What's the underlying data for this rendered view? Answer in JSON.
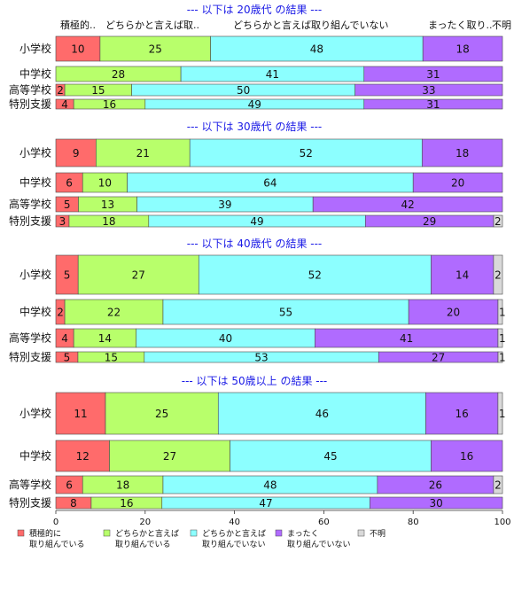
{
  "chart_data": {
    "type": "bar",
    "orientation": "horizontal-stacked",
    "header_labels": [
      "積極的..",
      "どちらかと言えば取..",
      "どちらかと言えば取り組んでいない",
      "まったく取り..",
      "不明"
    ],
    "legend": [
      {
        "label": [
          "積極的に",
          "取り組んでいる"
        ],
        "color": "#ff6b6b"
      },
      {
        "label": [
          "どちらかと言えば",
          "取り組んでいる"
        ],
        "color": "#b8ff6b"
      },
      {
        "label": [
          "どちらかと言えば",
          "取り組んでいない"
        ],
        "color": "#8cffff"
      },
      {
        "label": [
          "まったく",
          "取り組んでいない"
        ],
        "color": "#b06bff"
      },
      {
        "label": [
          "不明"
        ],
        "color": "#d9d9d9"
      }
    ],
    "xlim": [
      0,
      100
    ],
    "xticks": [
      "0",
      "20",
      "40",
      "60",
      "80",
      "100"
    ],
    "groups": [
      {
        "title": "--- 以下は 20歳代 の結果 ---",
        "rows": [
          {
            "label": "小学校",
            "values": [
              10,
              25,
              48,
              18,
              0
            ]
          },
          {
            "label": "中学校",
            "values": [
              0,
              28,
              41,
              31,
              0
            ]
          },
          {
            "label": "高等学校",
            "values": [
              2,
              15,
              50,
              33,
              0
            ]
          },
          {
            "label": "特別支援",
            "values": [
              4,
              16,
              49,
              31,
              0
            ]
          }
        ]
      },
      {
        "title": "--- 以下は 30歳代 の結果 ---",
        "rows": [
          {
            "label": "小学校",
            "values": [
              9,
              21,
              52,
              18,
              0
            ]
          },
          {
            "label": "中学校",
            "values": [
              6,
              10,
              64,
              20,
              0
            ]
          },
          {
            "label": "高等学校",
            "values": [
              5,
              13,
              39,
              42,
              0
            ]
          },
          {
            "label": "特別支援",
            "values": [
              3,
              18,
              49,
              29,
              2
            ]
          }
        ]
      },
      {
        "title": "--- 以下は 40歳代 の結果 ---",
        "rows": [
          {
            "label": "小学校",
            "values": [
              5,
              27,
              52,
              14,
              2
            ]
          },
          {
            "label": "中学校",
            "values": [
              2,
              22,
              55,
              20,
              1
            ]
          },
          {
            "label": "高等学校",
            "values": [
              4,
              14,
              40,
              41,
              1
            ]
          },
          {
            "label": "特別支援",
            "values": [
              5,
              15,
              53,
              27,
              1
            ]
          }
        ]
      },
      {
        "title": "--- 以下は 50歳以上 の結果 ---",
        "rows": [
          {
            "label": "小学校",
            "values": [
              11,
              25,
              46,
              16,
              1
            ]
          },
          {
            "label": "中学校",
            "values": [
              12,
              27,
              45,
              16,
              0
            ]
          },
          {
            "label": "高等学校",
            "values": [
              6,
              18,
              48,
              26,
              2
            ]
          },
          {
            "label": "特別支援",
            "values": [
              8,
              16,
              47,
              30,
              0
            ]
          }
        ]
      }
    ]
  }
}
